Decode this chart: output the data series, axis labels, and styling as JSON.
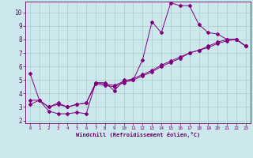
{
  "xlabel": "Windchill (Refroidissement éolien,°C)",
  "background_color": "#cde8ec",
  "line_color": "#800080",
  "grid_color": "#aacccc",
  "xlim": [
    -0.5,
    23.5
  ],
  "ylim": [
    1.8,
    10.8
  ],
  "xticks": [
    0,
    1,
    2,
    3,
    4,
    5,
    6,
    7,
    8,
    9,
    10,
    11,
    12,
    13,
    14,
    15,
    16,
    17,
    18,
    19,
    20,
    21,
    22,
    23
  ],
  "yticks": [
    2,
    3,
    4,
    5,
    6,
    7,
    8,
    9,
    10
  ],
  "series1_x": [
    0,
    1,
    2,
    3,
    4,
    5,
    6,
    7,
    8,
    9,
    10,
    11,
    12,
    13,
    14,
    15,
    16,
    17,
    18,
    19,
    20,
    21,
    22,
    23
  ],
  "series1_y": [
    5.5,
    3.5,
    2.7,
    2.5,
    2.5,
    2.6,
    2.5,
    4.8,
    4.8,
    4.2,
    5.0,
    5.0,
    6.5,
    9.3,
    8.5,
    10.7,
    10.5,
    10.5,
    9.1,
    8.5,
    8.4,
    8.0,
    8.0,
    7.5
  ],
  "series2_x": [
    0,
    1,
    2,
    3,
    4,
    5,
    6,
    7,
    8,
    9,
    10,
    11,
    12,
    13,
    14,
    15,
    16,
    17,
    18,
    19,
    20,
    21,
    22,
    23
  ],
  "series2_y": [
    3.2,
    3.5,
    3.0,
    3.3,
    3.0,
    3.2,
    3.3,
    4.8,
    4.7,
    4.6,
    4.9,
    5.1,
    5.4,
    5.7,
    6.1,
    6.4,
    6.7,
    7.0,
    7.2,
    7.5,
    7.8,
    8.0,
    8.0,
    7.5
  ],
  "series3_x": [
    0,
    1,
    2,
    3,
    4,
    5,
    6,
    7,
    8,
    9,
    10,
    11,
    12,
    13,
    14,
    15,
    16,
    17,
    18,
    19,
    20,
    21,
    22,
    23
  ],
  "series3_y": [
    3.5,
    3.5,
    3.0,
    3.2,
    3.0,
    3.2,
    3.3,
    4.7,
    4.6,
    4.5,
    4.8,
    5.0,
    5.3,
    5.6,
    6.0,
    6.3,
    6.6,
    7.0,
    7.2,
    7.4,
    7.7,
    7.9,
    8.0,
    7.5
  ]
}
